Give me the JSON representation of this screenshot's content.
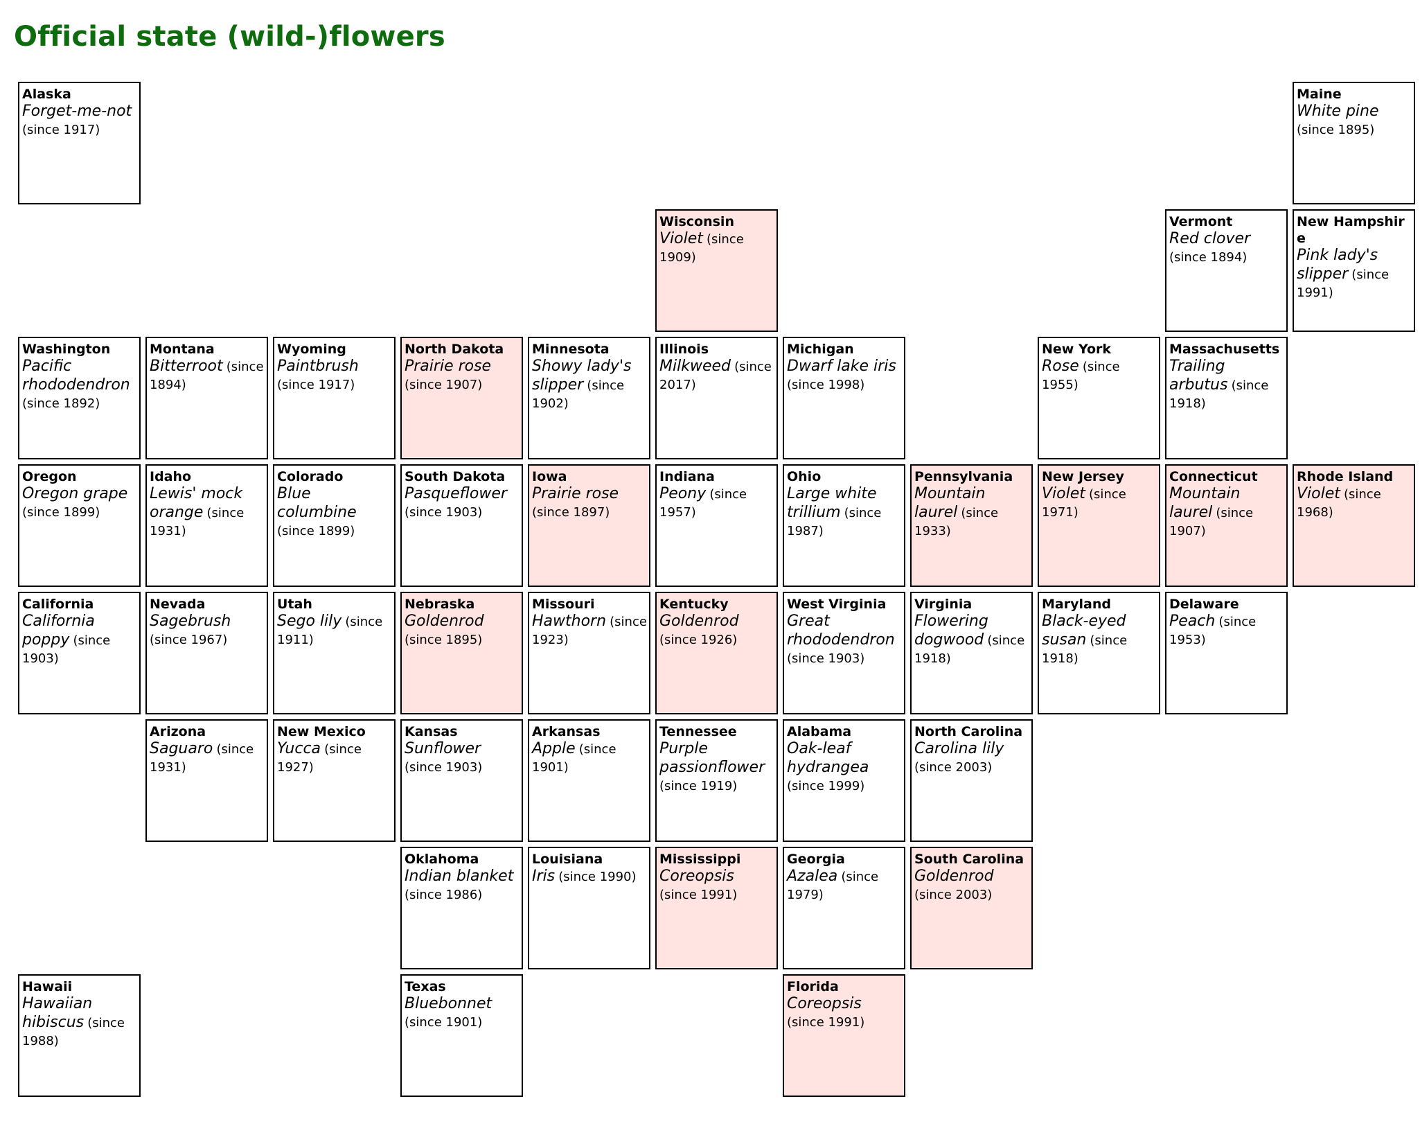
{
  "title": "Official state (wild-)flowers",
  "highlight_color": "#ffe4e1",
  "title_color": "#0e6b0e",
  "tiles": [
    {
      "state": "Alaska",
      "flower": "Forget-me-not",
      "since": "(since 1917)",
      "row": 0,
      "col": 0,
      "highlight": false
    },
    {
      "state": "Maine",
      "flower": "White pine",
      "since": "(since 1895)",
      "row": 0,
      "col": 10,
      "highlight": false
    },
    {
      "state": "Wisconsin",
      "flower": "Violet",
      "since": "(since 1909)",
      "row": 1,
      "col": 5,
      "highlight": true
    },
    {
      "state": "Vermont",
      "flower": "Red clover",
      "since": "(since 1894)",
      "row": 1,
      "col": 9,
      "highlight": false
    },
    {
      "state": "New Hampshire",
      "flower": "Pink lady's slipper",
      "since": "(since 1991)",
      "row": 1,
      "col": 10,
      "highlight": false
    },
    {
      "state": "Washington",
      "flower": "Pacific rhododendron",
      "since": "(since 1892)",
      "row": 2,
      "col": 0,
      "highlight": false
    },
    {
      "state": "Montana",
      "flower": "Bitterroot",
      "since": "(since 1894)",
      "row": 2,
      "col": 1,
      "highlight": false
    },
    {
      "state": "Wyoming",
      "flower": "Paintbrush",
      "since": "(since 1917)",
      "row": 2,
      "col": 2,
      "highlight": false
    },
    {
      "state": "North Dakota",
      "flower": "Prairie rose",
      "since": "(since 1907)",
      "row": 2,
      "col": 3,
      "highlight": true
    },
    {
      "state": "Minnesota",
      "flower": "Showy lady's slipper",
      "since": "(since 1902)",
      "row": 2,
      "col": 4,
      "highlight": false
    },
    {
      "state": "Illinois",
      "flower": "Milkweed",
      "since": "(since 2017)",
      "row": 2,
      "col": 5,
      "highlight": false
    },
    {
      "state": "Michigan",
      "flower": "Dwarf lake iris",
      "since": "(since 1998)",
      "row": 2,
      "col": 6,
      "highlight": false
    },
    {
      "state": "New York",
      "flower": "Rose",
      "since": "(since 1955)",
      "row": 2,
      "col": 8,
      "highlight": false
    },
    {
      "state": "Massachusetts",
      "flower": "Trailing arbutus",
      "since": "(since 1918)",
      "row": 2,
      "col": 9,
      "highlight": false
    },
    {
      "state": "Oregon",
      "flower": "Oregon grape",
      "since": "(since 1899)",
      "row": 3,
      "col": 0,
      "highlight": false
    },
    {
      "state": "Idaho",
      "flower": "Lewis' mock orange",
      "since": "(since 1931)",
      "row": 3,
      "col": 1,
      "highlight": false
    },
    {
      "state": "Colorado",
      "flower": "Blue columbine",
      "since": "(since 1899)",
      "row": 3,
      "col": 2,
      "highlight": false
    },
    {
      "state": "South Dakota",
      "flower": "Pasqueflower",
      "since": "(since 1903)",
      "row": 3,
      "col": 3,
      "highlight": false
    },
    {
      "state": "Iowa",
      "flower": "Prairie rose",
      "since": "(since 1897)",
      "row": 3,
      "col": 4,
      "highlight": true
    },
    {
      "state": "Indiana",
      "flower": "Peony",
      "since": "(since 1957)",
      "row": 3,
      "col": 5,
      "highlight": false
    },
    {
      "state": "Ohio",
      "flower": "Large white trillium",
      "since": "(since 1987)",
      "row": 3,
      "col": 6,
      "highlight": false
    },
    {
      "state": "Pennsylvania",
      "flower": "Mountain laurel",
      "since": "(since 1933)",
      "row": 3,
      "col": 7,
      "highlight": true
    },
    {
      "state": "New Jersey",
      "flower": "Violet",
      "since": "(since 1971)",
      "row": 3,
      "col": 8,
      "highlight": true
    },
    {
      "state": "Connecticut",
      "flower": "Mountain laurel",
      "since": "(since 1907)",
      "row": 3,
      "col": 9,
      "highlight": true
    },
    {
      "state": "Rhode Island",
      "flower": "Violet",
      "since": "(since 1968)",
      "row": 3,
      "col": 10,
      "highlight": true
    },
    {
      "state": "California",
      "flower": "California poppy",
      "since": "(since 1903)",
      "row": 4,
      "col": 0,
      "highlight": false
    },
    {
      "state": "Nevada",
      "flower": "Sagebrush",
      "since": "(since 1967)",
      "row": 4,
      "col": 1,
      "highlight": false
    },
    {
      "state": "Utah",
      "flower": "Sego lily",
      "since": "(since 1911)",
      "row": 4,
      "col": 2,
      "highlight": false
    },
    {
      "state": "Nebraska",
      "flower": "Goldenrod",
      "since": "(since 1895)",
      "row": 4,
      "col": 3,
      "highlight": true
    },
    {
      "state": "Missouri",
      "flower": "Hawthorn",
      "since": "(since 1923)",
      "row": 4,
      "col": 4,
      "highlight": false
    },
    {
      "state": "Kentucky",
      "flower": "Goldenrod",
      "since": "(since 1926)",
      "row": 4,
      "col": 5,
      "highlight": true
    },
    {
      "state": "West Virginia",
      "flower": "Great rhododendron",
      "since": "(since 1903)",
      "row": 4,
      "col": 6,
      "highlight": false
    },
    {
      "state": "Virginia",
      "flower": "Flowering dogwood",
      "since": "(since 1918)",
      "row": 4,
      "col": 7,
      "highlight": false
    },
    {
      "state": "Maryland",
      "flower": "Black-eyed susan",
      "since": "(since 1918)",
      "row": 4,
      "col": 8,
      "highlight": false
    },
    {
      "state": "Delaware",
      "flower": "Peach",
      "since": "(since 1953)",
      "row": 4,
      "col": 9,
      "highlight": false
    },
    {
      "state": "Arizona",
      "flower": "Saguaro",
      "since": "(since 1931)",
      "row": 5,
      "col": 1,
      "highlight": false
    },
    {
      "state": "New Mexico",
      "flower": "Yucca",
      "since": "(since 1927)",
      "row": 5,
      "col": 2,
      "highlight": false
    },
    {
      "state": "Kansas",
      "flower": "Sunflower",
      "since": "(since 1903)",
      "row": 5,
      "col": 3,
      "highlight": false
    },
    {
      "state": "Arkansas",
      "flower": "Apple",
      "since": "(since 1901)",
      "row": 5,
      "col": 4,
      "highlight": false
    },
    {
      "state": "Tennessee",
      "flower": "Purple passionflower",
      "since": "(since 1919)",
      "row": 5,
      "col": 5,
      "highlight": false
    },
    {
      "state": "Alabama",
      "flower": "Oak-leaf hydrangea",
      "since": "(since 1999)",
      "row": 5,
      "col": 6,
      "highlight": false
    },
    {
      "state": "North Carolina",
      "flower": "Carolina lily",
      "since": "(since 2003)",
      "row": 5,
      "col": 7,
      "highlight": false
    },
    {
      "state": "Oklahoma",
      "flower": "Indian blanket",
      "since": "(since 1986)",
      "row": 6,
      "col": 3,
      "highlight": false
    },
    {
      "state": "Louisiana",
      "flower": "Iris",
      "since": "(since 1990)",
      "row": 6,
      "col": 4,
      "highlight": false
    },
    {
      "state": "Mississippi",
      "flower": "Coreopsis",
      "since": "(since 1991)",
      "row": 6,
      "col": 5,
      "highlight": true
    },
    {
      "state": "Georgia",
      "flower": "Azalea",
      "since": "(since 1979)",
      "row": 6,
      "col": 6,
      "highlight": false
    },
    {
      "state": "South Carolina",
      "flower": "Goldenrod",
      "since": "(since 2003)",
      "row": 6,
      "col": 7,
      "highlight": true
    },
    {
      "state": "Hawaii",
      "flower": "Hawaiian hibiscus",
      "since": "(since 1988)",
      "row": 7,
      "col": 0,
      "highlight": false
    },
    {
      "state": "Texas",
      "flower": "Bluebonnet",
      "since": "(since 1901)",
      "row": 7,
      "col": 3,
      "highlight": false
    },
    {
      "state": "Florida",
      "flower": "Coreopsis",
      "since": "(since 1991)",
      "row": 7,
      "col": 6,
      "highlight": true
    }
  ]
}
